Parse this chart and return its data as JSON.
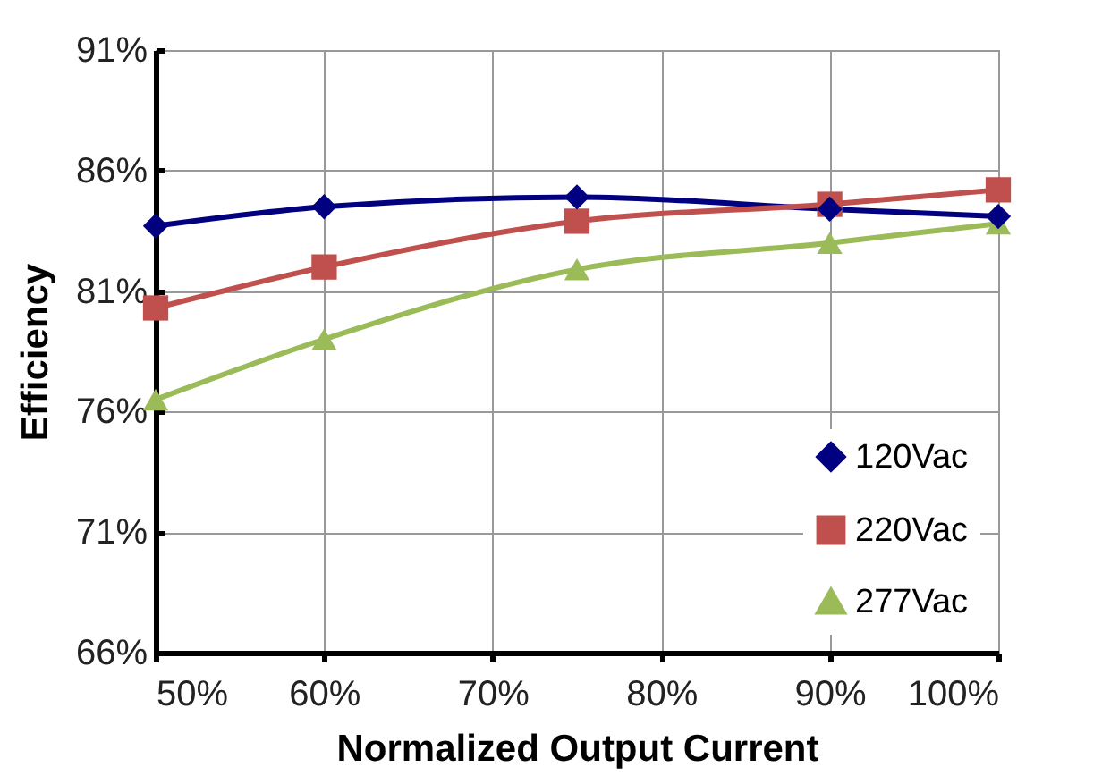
{
  "chart_data": {
    "type": "line",
    "xlabel": "Normalized Output Current",
    "ylabel": "Efficiency",
    "x": [
      50,
      60,
      75,
      90,
      100
    ],
    "series": [
      {
        "name": "120Vac",
        "color": "#000080",
        "marker": "diamond",
        "values": [
          83.7,
          84.5,
          84.9,
          84.4,
          84.1
        ]
      },
      {
        "name": "220Vac",
        "color": "#c0504d",
        "marker": "square",
        "values": [
          80.3,
          82.0,
          83.9,
          84.6,
          85.2
        ]
      },
      {
        "name": "277Vac",
        "color": "#9bbb59",
        "marker": "triangle",
        "values": [
          76.5,
          79.0,
          81.9,
          83.0,
          83.8
        ]
      }
    ],
    "xlim": [
      50,
      100
    ],
    "xticks": [
      {
        "value": 50,
        "label": "50%"
      },
      {
        "value": 60,
        "label": "60%"
      },
      {
        "value": 70,
        "label": "70%"
      },
      {
        "value": 80,
        "label": "80%"
      },
      {
        "value": 90,
        "label": "90%"
      },
      {
        "value": 100,
        "label": "100%"
      }
    ],
    "ylim": [
      66,
      91
    ],
    "yticks": [
      {
        "value": 66,
        "label": "66%"
      },
      {
        "value": 71,
        "label": "71%"
      },
      {
        "value": 76,
        "label": "76%"
      },
      {
        "value": 81,
        "label": "81%"
      },
      {
        "value": 86,
        "label": "86%"
      },
      {
        "value": 91,
        "label": "91%"
      }
    ],
    "grid": true,
    "legend": "bottom right",
    "line_style": "solid"
  }
}
